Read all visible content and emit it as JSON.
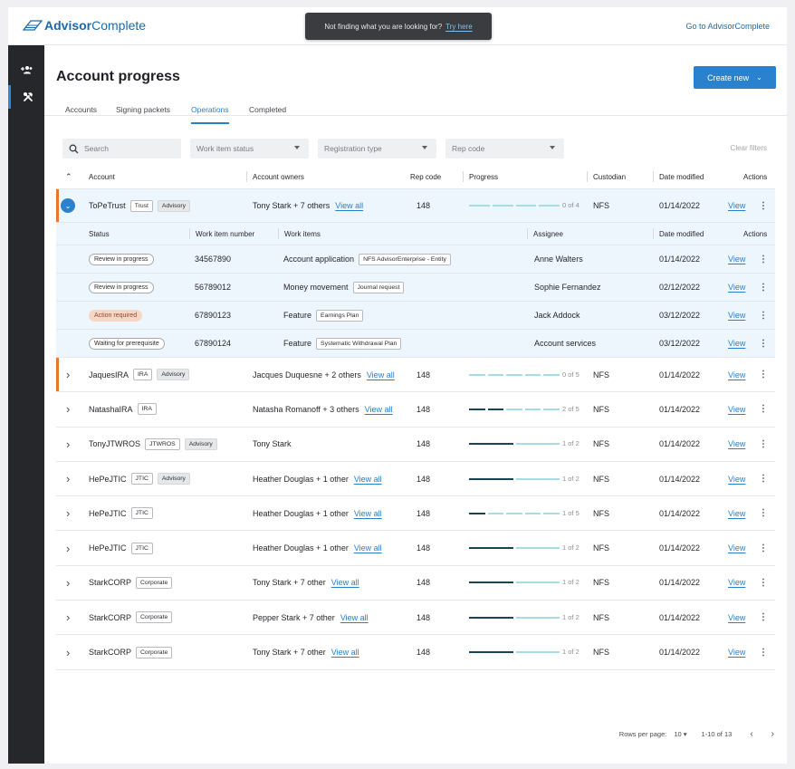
{
  "brand": {
    "prefix": "Advisor",
    "suffix": "Complete"
  },
  "toast": {
    "text": "Not finding what you are looking for?",
    "link": "Try here"
  },
  "goto_link": "Go to AdvisorComplete",
  "page_title": "Account progress",
  "create_label": "Create new",
  "tabs": [
    "Accounts",
    "Signing packets",
    "Operations",
    "Completed"
  ],
  "active_tab": "Operations",
  "filters": {
    "search_placeholder": "Search",
    "work_item_status": "Work item status",
    "registration_type": "Registration type",
    "rep_code": "Rep code",
    "clear": "Clear filters"
  },
  "headers": {
    "account": "Account",
    "owners": "Account owners",
    "rep_code": "Rep code",
    "progress": "Progress",
    "custodian": "Custodian",
    "date_modified": "Date modified",
    "actions": "Actions"
  },
  "sub_headers": {
    "status": "Status",
    "work_item_number": "Work item number",
    "work_items": "Work items",
    "assignee": "Assignee",
    "date_modified": "Date modified",
    "actions": "Actions"
  },
  "view_label": "View",
  "view_all_label": "View all",
  "expanded_account": {
    "name": "ToPeTrust",
    "tags": [
      "Trust",
      "Advisory"
    ],
    "owners": "Tony Stark + 7 others",
    "rep_code": "148",
    "progress": {
      "done": 0,
      "total": 4,
      "label": "0 of 4"
    },
    "custodian": "NFS",
    "date": "01/14/2022"
  },
  "work_items": [
    {
      "status": "Review in progress",
      "status_kind": "normal",
      "number": "34567890",
      "item": "Account application",
      "tag": "NFS AdvisorEnterprise - Entity",
      "assignee": "Anne Walters",
      "date": "01/14/2022"
    },
    {
      "status": "Review in progress",
      "status_kind": "normal",
      "number": "56789012",
      "item": "Money movement",
      "tag": "Journal request",
      "assignee": "Sophie Fernandez",
      "date": "02/12/2022"
    },
    {
      "status": "Action required",
      "status_kind": "warn",
      "number": "67890123",
      "item": "Feature",
      "tag": "Earnings Plan",
      "assignee": "Jack Addock",
      "date": "03/12/2022"
    },
    {
      "status": "Waiting for prerequisite",
      "status_kind": "normal",
      "number": "67890124",
      "item": "Feature",
      "tag": "Systematic Withdrawal Plan",
      "assignee": "Account services",
      "date": "03/12/2022"
    }
  ],
  "accounts": [
    {
      "name": "JaquesIRA",
      "tags": [
        "IRA",
        "Advisory"
      ],
      "owners": "Jacques Duquesne + 2 others",
      "view_all": true,
      "rep_code": "148",
      "done": 0,
      "total": 5,
      "progress_label": "0 of 5",
      "custodian": "NFS",
      "date": "01/14/2022",
      "marked": true
    },
    {
      "name": "NatashaIRA",
      "tags": [
        "IRA"
      ],
      "owners": "Natasha Romanoff + 3 others",
      "view_all": true,
      "rep_code": "148",
      "done": 2,
      "total": 5,
      "progress_label": "2 of 5",
      "custodian": "NFS",
      "date": "01/14/2022",
      "marked": false
    },
    {
      "name": "TonyJTWROS",
      "tags": [
        "JTWROS",
        "Advisory"
      ],
      "owners": "Tony Stark",
      "view_all": false,
      "rep_code": "148",
      "done": 1,
      "total": 2,
      "progress_label": "1 of 2",
      "custodian": "NFS",
      "date": "01/14/2022",
      "marked": false
    },
    {
      "name": "HePeJTIC",
      "tags": [
        "JTIC",
        "Advisory"
      ],
      "owners": "Heather Douglas + 1 other",
      "view_all": true,
      "rep_code": "148",
      "done": 1,
      "total": 2,
      "progress_label": "1 of 2",
      "custodian": "NFS",
      "date": "01/14/2022",
      "marked": false
    },
    {
      "name": "HePeJTIC",
      "tags": [
        "JTIC"
      ],
      "owners": "Heather Douglas + 1 other",
      "view_all": true,
      "rep_code": "148",
      "done": 1,
      "total": 5,
      "progress_label": "1 of 5",
      "custodian": "NFS",
      "date": "01/14/2022",
      "marked": false
    },
    {
      "name": "HePeJTIC",
      "tags": [
        "JTIC"
      ],
      "owners": "Heather Douglas + 1 other",
      "view_all": true,
      "rep_code": "148",
      "done": 1,
      "total": 2,
      "progress_label": "1 of 2",
      "custodian": "NFS",
      "date": "01/14/2022",
      "marked": false
    },
    {
      "name": "StarkCORP",
      "tags": [
        "Corporate"
      ],
      "owners": "Tony Stark + 7 other",
      "view_all": true,
      "rep_code": "148",
      "done": 1,
      "total": 2,
      "progress_label": "1 of 2",
      "custodian": "NFS",
      "date": "01/14/2022",
      "marked": false
    },
    {
      "name": "StarkCORP",
      "tags": [
        "Corporate"
      ],
      "owners": "Pepper Stark + 7 other",
      "view_all": true,
      "rep_code": "148",
      "done": 1,
      "total": 2,
      "progress_label": "1 of 2",
      "custodian": "NFS",
      "date": "01/14/2022",
      "marked": false
    },
    {
      "name": "StarkCORP",
      "tags": [
        "Corporate"
      ],
      "owners": "Tony Stark + 7 other",
      "view_all": true,
      "rep_code": "148",
      "done": 1,
      "total": 2,
      "progress_label": "1 of 2",
      "custodian": "NFS",
      "date": "01/14/2022",
      "marked": false
    }
  ],
  "pagination": {
    "rows_per_page_label": "Rows per page:",
    "rows_per_page": "10",
    "range": "1-10 of 13"
  },
  "colors": {
    "accent": "#2a82cf",
    "marker": "#e8762d",
    "progress_done": "#164654",
    "progress_todo": "#a6dce4"
  }
}
